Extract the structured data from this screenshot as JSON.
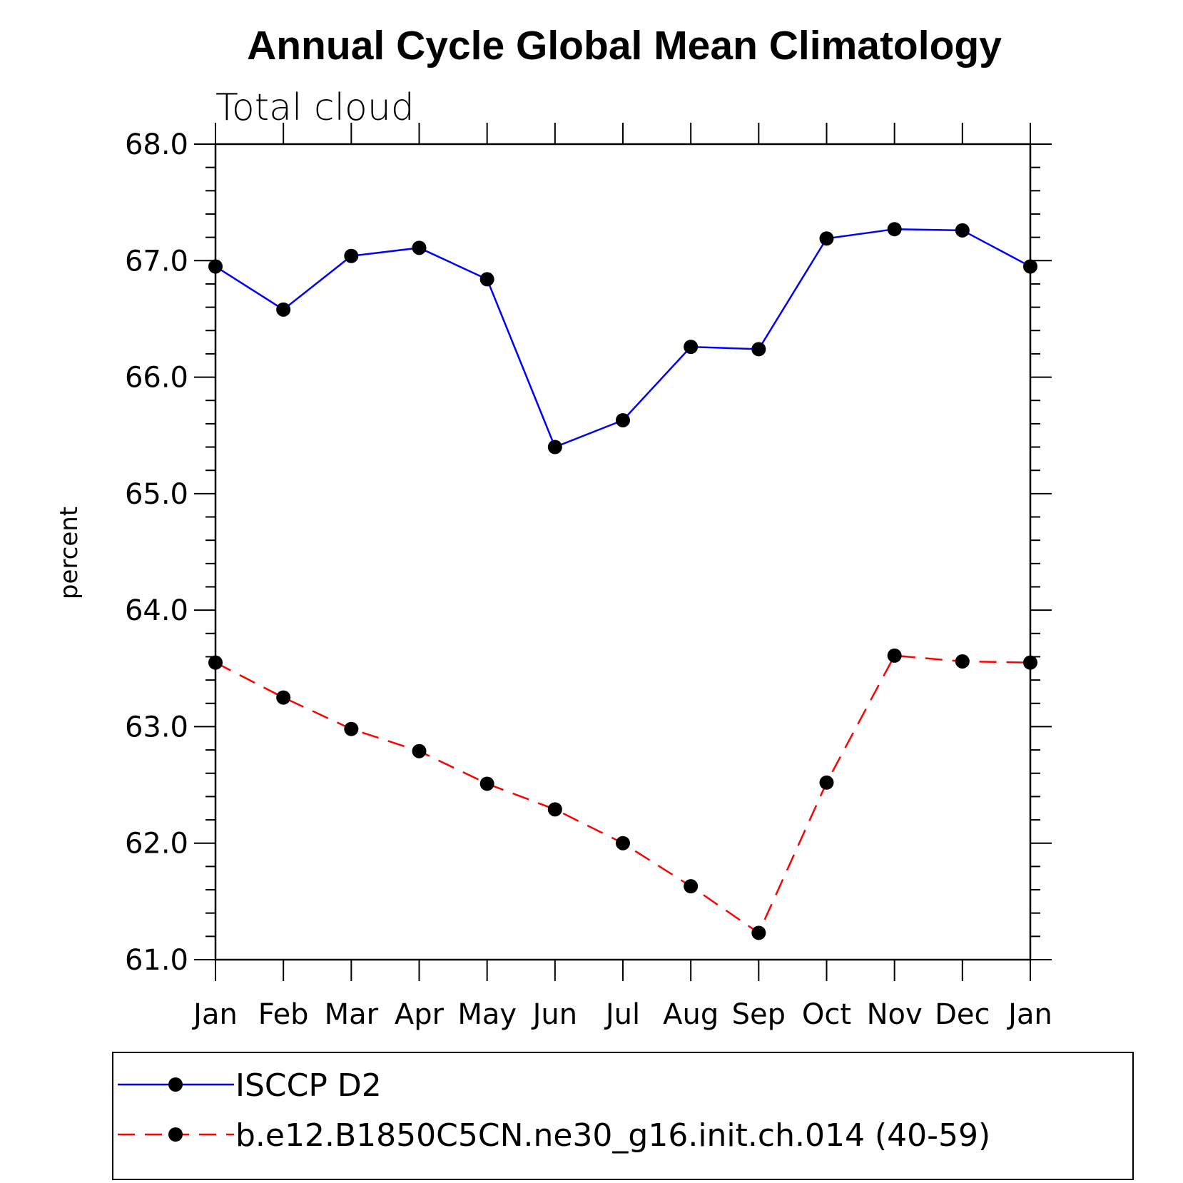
{
  "chart_data": {
    "type": "line",
    "title": "Annual Cycle Global Mean Climatology",
    "subtitle": "Total cloud",
    "xlabel": "",
    "ylabel": "percent",
    "categories": [
      "Jan",
      "Feb",
      "Mar",
      "Apr",
      "May",
      "Jun",
      "Jul",
      "Aug",
      "Sep",
      "Oct",
      "Nov",
      "Dec",
      "Jan"
    ],
    "ylim": [
      61.0,
      68.0
    ],
    "yticks": [
      "61.0",
      "62.0",
      "63.0",
      "64.0",
      "65.0",
      "66.0",
      "67.0",
      "68.0"
    ],
    "grid": false,
    "legend_position": "bottom",
    "series": [
      {
        "name": "ISCCP D2",
        "color": "#0000ff",
        "line_style": "solid",
        "marker": "filled-circle",
        "values": [
          66.95,
          66.58,
          67.04,
          67.11,
          66.84,
          65.4,
          65.63,
          66.26,
          66.24,
          67.19,
          67.27,
          67.26,
          66.95
        ]
      },
      {
        "name": "b.e12.B1850C5CN.ne30_g16.init.ch.014 (40-59)",
        "color": "#ff0000",
        "line_style": "dashed",
        "marker": "filled-circle",
        "values": [
          63.55,
          63.25,
          62.98,
          62.79,
          62.51,
          62.29,
          62.0,
          61.63,
          61.23,
          62.52,
          63.61,
          63.56,
          63.55
        ]
      }
    ]
  }
}
